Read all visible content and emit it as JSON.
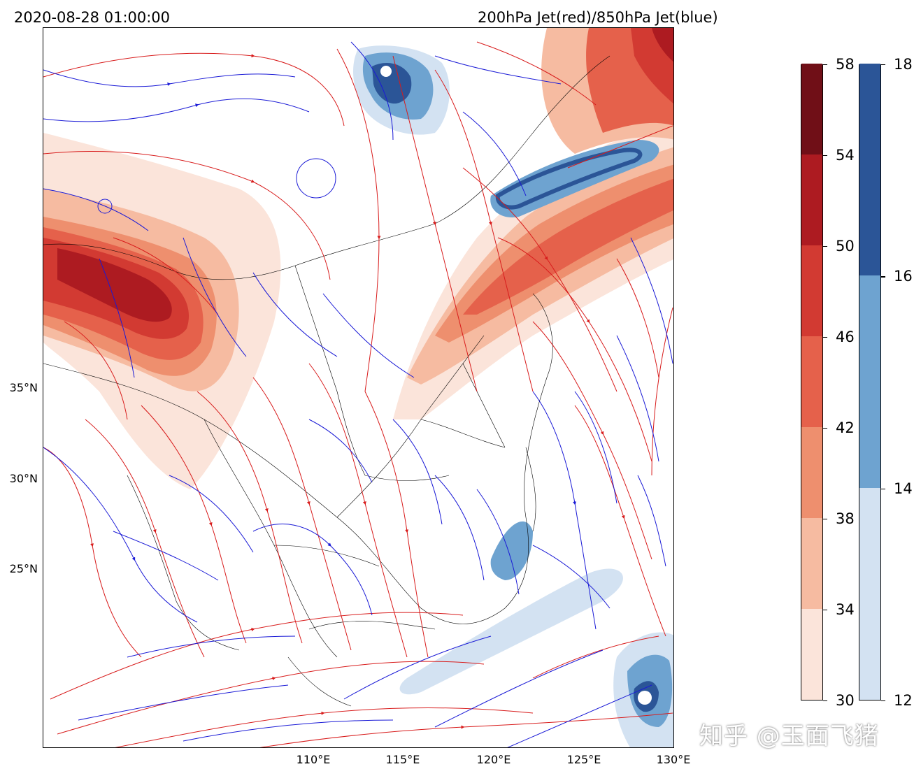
{
  "header": {
    "timestamp": "2020-08-28 01:00:00",
    "description": "200hPa Jet(red)/850hPa Jet(blue)"
  },
  "axes": {
    "lat_labels": [
      "35°N",
      "30°N",
      "25°N"
    ],
    "lon_labels": [
      "110°E",
      "115°E",
      "120°E",
      "125°E",
      "130°E"
    ]
  },
  "colorbar_red": {
    "ticks": [
      "58",
      "54",
      "50",
      "46",
      "42",
      "38",
      "34",
      "30"
    ],
    "colors": [
      "#fbe4da",
      "#f6bba1",
      "#ee8f6e",
      "#e5614b",
      "#d23a32",
      "#ad1b21",
      "#700f17"
    ]
  },
  "colorbar_blue": {
    "ticks": [
      "18",
      "16",
      "14",
      "12"
    ],
    "colors": [
      "#d3e2f2",
      "#6ea3d0",
      "#2b5597"
    ]
  },
  "streamline_colors": {
    "upper": "#d81c1c",
    "lower": "#1a1ad6"
  },
  "watermark": "知乎 @玉面飞猪"
}
